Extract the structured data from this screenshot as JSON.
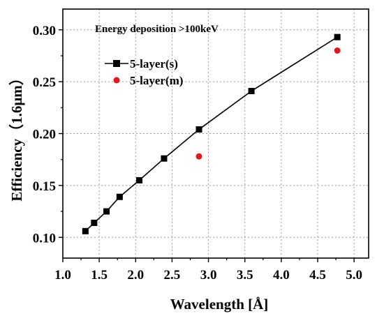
{
  "chart_data": {
    "type": "scatter",
    "annotation": "Energy deposition >100keV",
    "xlabel": "Wavelength [Å]",
    "ylabel": "Efficiency（1.6μm）",
    "xlim": [
      1.0,
      5.2
    ],
    "ylim": [
      0.08,
      0.32
    ],
    "xticks": [
      "1.0",
      "1.5",
      "2.0",
      "2.5",
      "3.0",
      "3.5",
      "4.0",
      "4.5",
      "5.0"
    ],
    "yticks": [
      "0.10",
      "0.15",
      "0.20",
      "0.25",
      "0.30"
    ],
    "grid": true,
    "legend_position": "top-left",
    "series": [
      {
        "name": "5-layer(s)",
        "style": "line-square",
        "color": "#000000",
        "points": [
          {
            "x": 1.31,
            "y": 0.106
          },
          {
            "x": 1.43,
            "y": 0.114
          },
          {
            "x": 1.6,
            "y": 0.125
          },
          {
            "x": 1.78,
            "y": 0.139
          },
          {
            "x": 2.05,
            "y": 0.155
          },
          {
            "x": 2.39,
            "y": 0.176
          },
          {
            "x": 2.87,
            "y": 0.204
          },
          {
            "x": 3.59,
            "y": 0.241
          },
          {
            "x": 4.77,
            "y": 0.293
          }
        ]
      },
      {
        "name": "5-layer(m)",
        "style": "circle",
        "color": "#e8141b",
        "points": [
          {
            "x": 2.87,
            "y": 0.178
          },
          {
            "x": 4.77,
            "y": 0.28
          }
        ]
      }
    ]
  }
}
